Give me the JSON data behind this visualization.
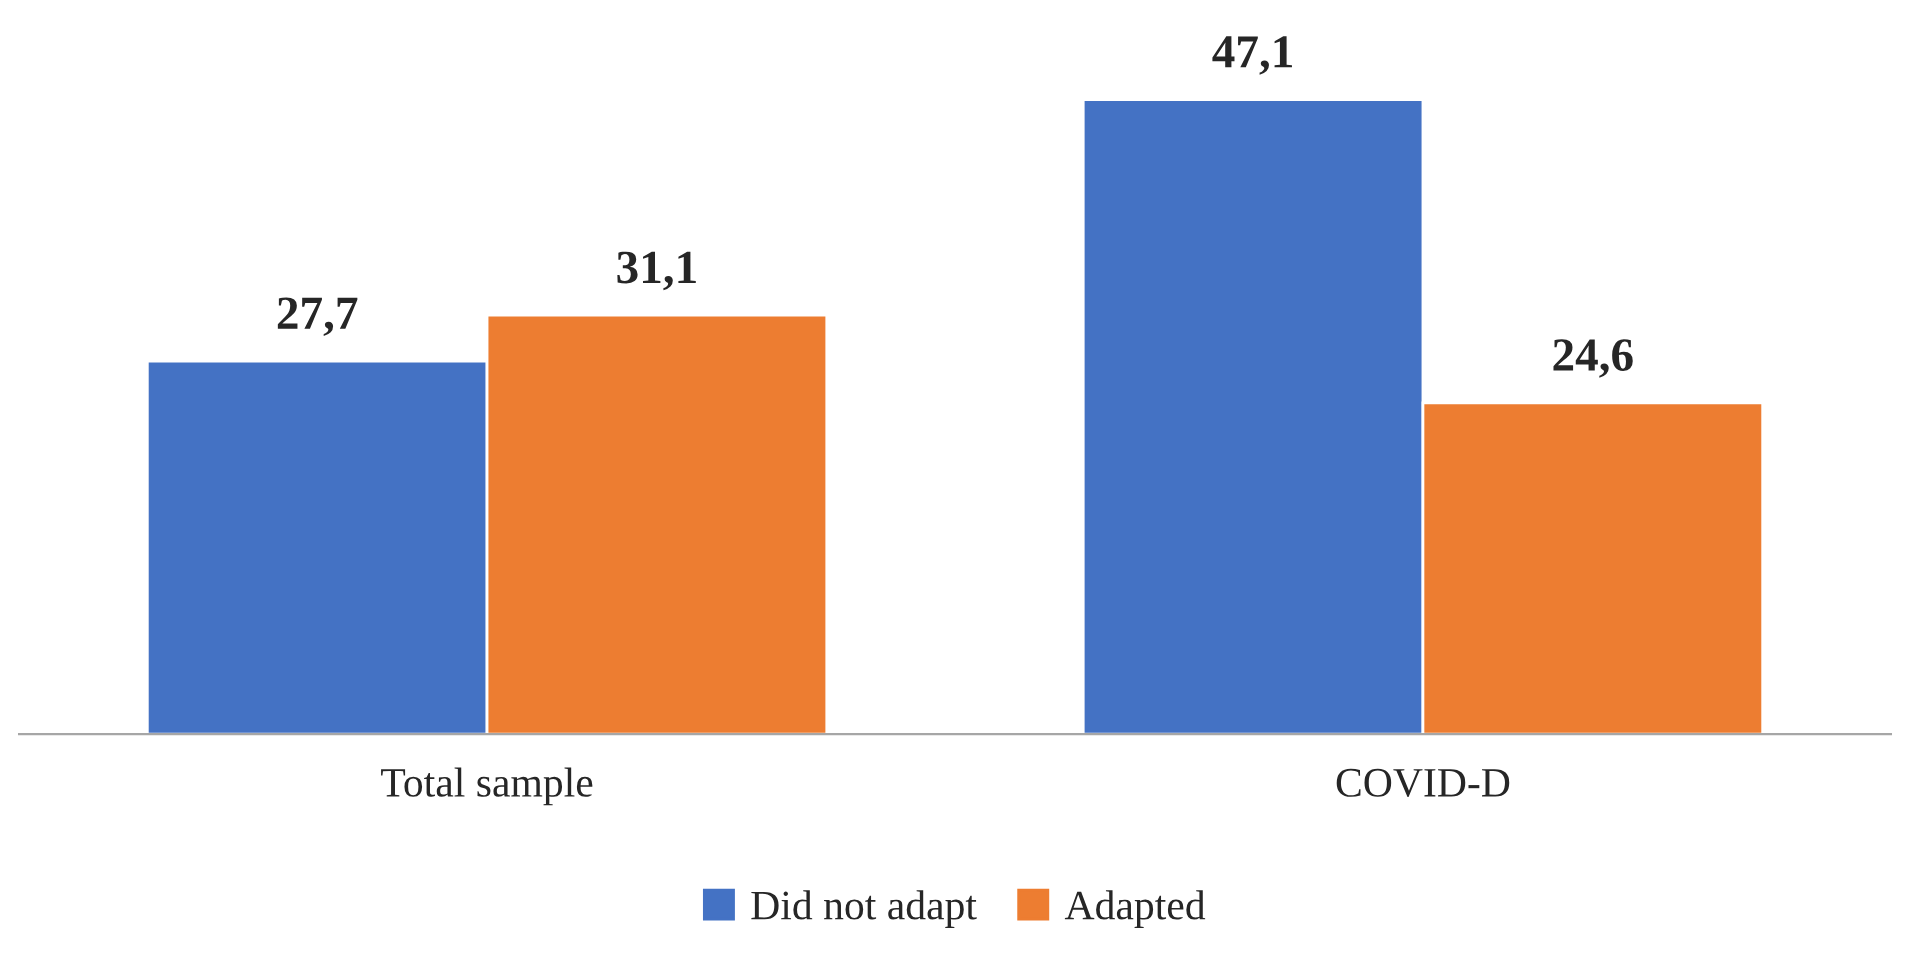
{
  "chart_data": {
    "type": "bar",
    "categories": [
      "Total sample",
      "COVID-D"
    ],
    "series": [
      {
        "name": "Did not adapt",
        "color": "#4472c4",
        "values": [
          27.7,
          47.1
        ],
        "value_labels": [
          "27,7",
          "47,1"
        ]
      },
      {
        "name": "Adapted",
        "color": "#ed7d31",
        "values": [
          31.1,
          24.6
        ],
        "value_labels": [
          "31,1",
          "24,6"
        ]
      }
    ],
    "legend": "bottom",
    "grid": false,
    "tick_labels": "x"
  }
}
